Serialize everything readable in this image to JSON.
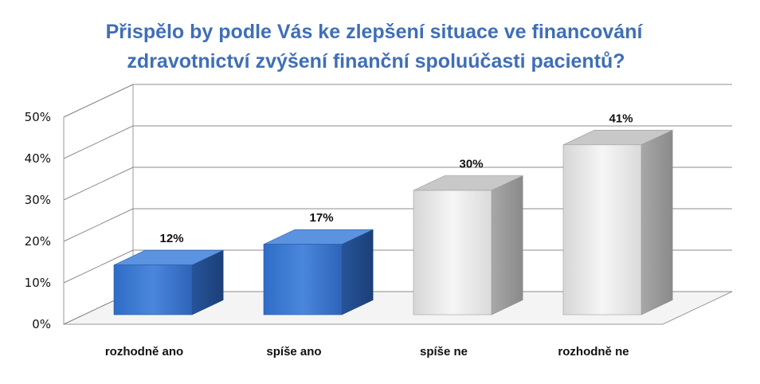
{
  "chart_data": {
    "type": "bar",
    "title_lines": [
      "Přispělo by podle Vás ke zlepšení situace ve financování",
      "zdravotnictví zvýšení finanční spoluúčasti pacientů?"
    ],
    "categories": [
      "rozhodně ano",
      "spíše ano",
      "spíše ne",
      "rozhodně ne"
    ],
    "values": [
      12,
      17,
      30,
      41
    ],
    "data_labels": [
      "12%",
      "17%",
      "30%",
      "41%"
    ],
    "y_ticks": [
      "0%",
      "10%",
      "20%",
      "30%",
      "40%",
      "50%"
    ],
    "ylim": [
      0,
      50
    ],
    "grid": true,
    "style": "3d-column",
    "colors": {
      "blue_front": "#3a78d2",
      "blue_side": "#24508f",
      "blue_top": "#5c93e0",
      "gray_front": "#e8e8e8",
      "gray_side": "#9c9c9c",
      "gray_top": "#c8c8c8",
      "title": "#3f6fb6"
    },
    "bar_colors": [
      "blue",
      "blue",
      "gray",
      "gray"
    ]
  }
}
